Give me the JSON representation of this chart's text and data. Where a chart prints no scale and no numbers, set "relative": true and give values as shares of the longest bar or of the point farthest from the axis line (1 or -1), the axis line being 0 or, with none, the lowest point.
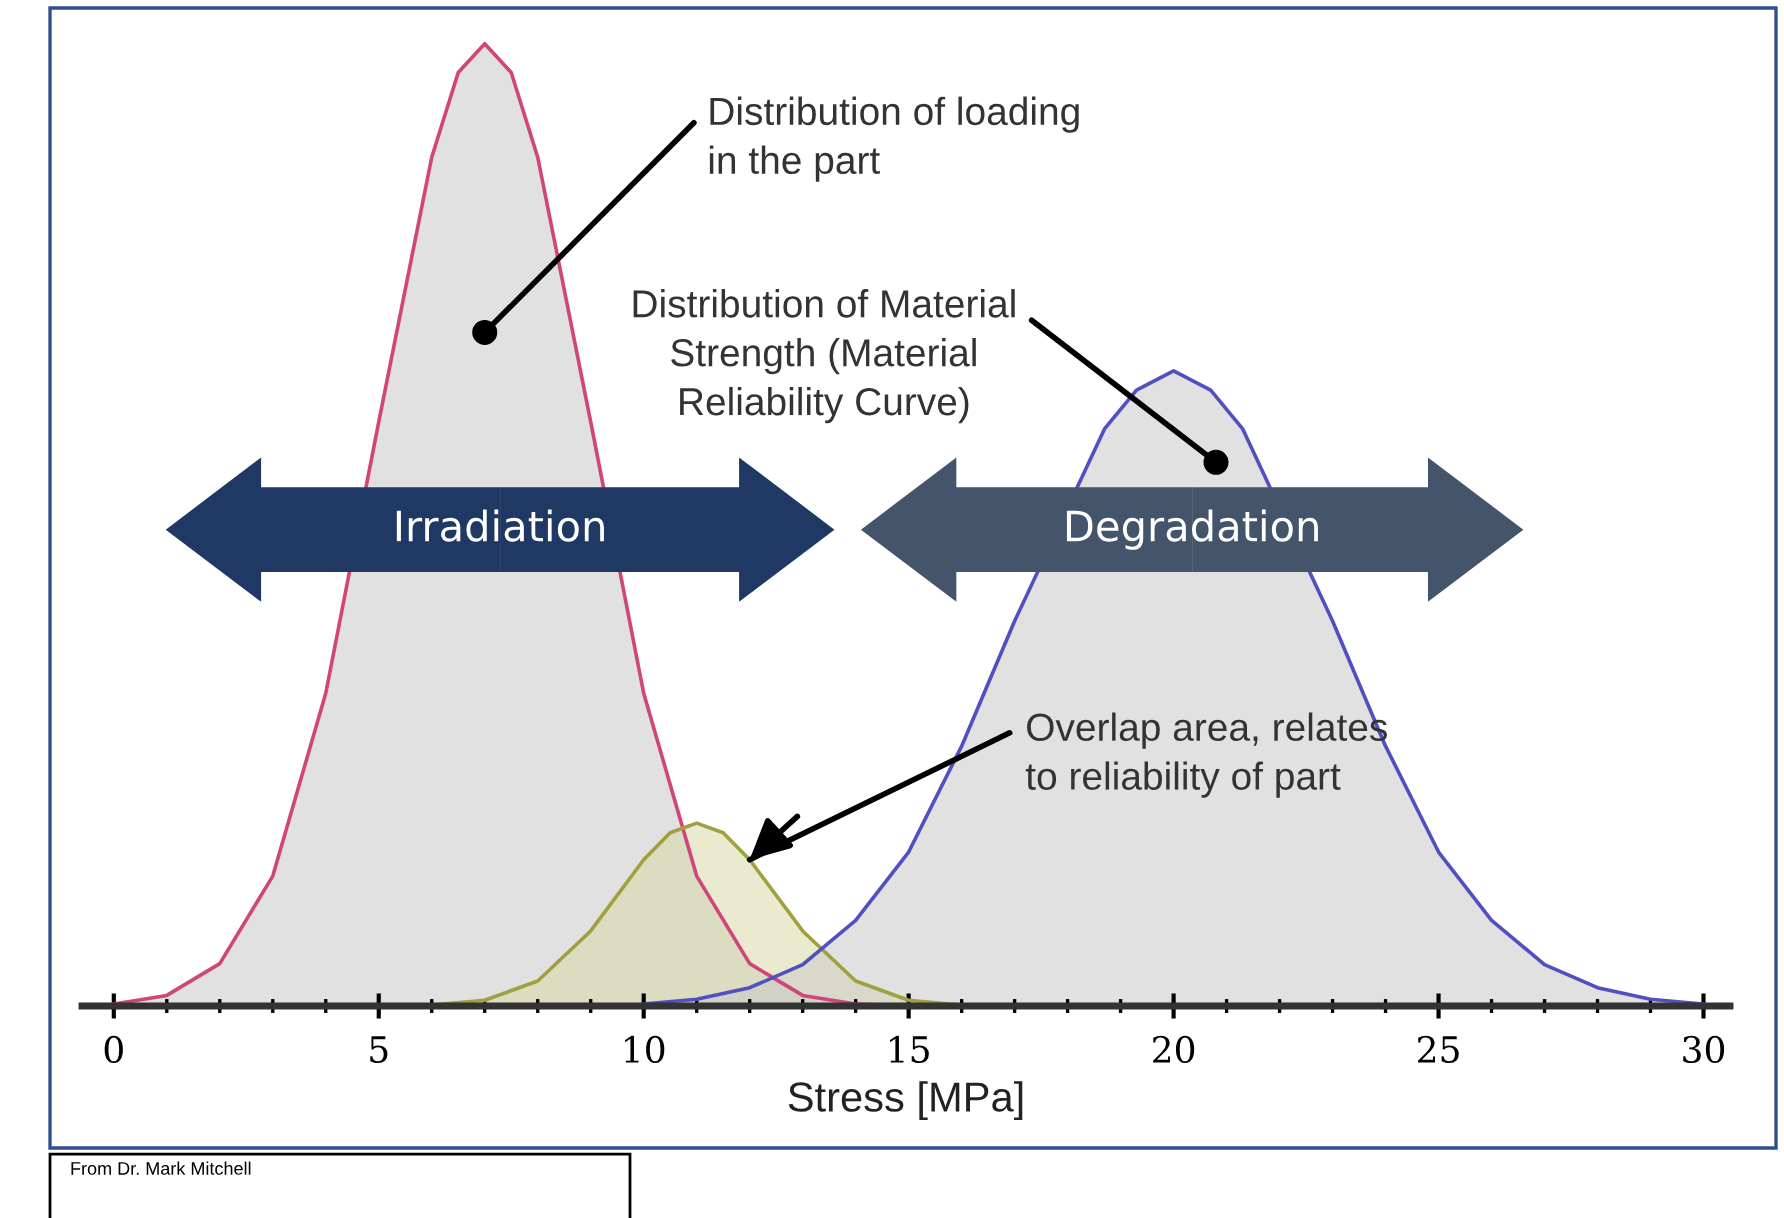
{
  "chart_data": {
    "type": "area",
    "relative": true,
    "xlabel": "Stress [MPa]",
    "xlim": [
      -0.6,
      30.5
    ],
    "xticks": [
      0,
      {
        "value": 1,
        "label": null
      },
      {
        "value": 2,
        "label": null
      },
      {
        "value": 3,
        "label": null
      },
      {
        "value": 4,
        "label": null
      },
      5,
      {
        "value": 6,
        "label": null
      },
      {
        "value": 7,
        "label": null
      },
      {
        "value": 8,
        "label": null
      },
      {
        "value": 9,
        "label": null
      },
      10,
      {
        "value": 11,
        "label": null
      },
      {
        "value": 12,
        "label": null
      },
      {
        "value": 13,
        "label": null
      },
      {
        "value": 14,
        "label": null
      },
      15,
      {
        "value": 16,
        "label": null
      },
      {
        "value": 17,
        "label": null
      },
      {
        "value": 18,
        "label": null
      },
      {
        "value": 19,
        "label": null
      },
      20,
      {
        "value": 21,
        "label": null
      },
      {
        "value": 22,
        "label": null
      },
      {
        "value": 23,
        "label": null
      },
      {
        "value": 24,
        "label": null
      },
      25,
      {
        "value": 26,
        "label": null
      },
      {
        "value": 27,
        "label": null
      },
      {
        "value": 28,
        "label": null
      },
      {
        "value": 29,
        "label": null
      },
      30
    ],
    "series": [
      {
        "color": "#d0457a",
        "x": [
          0,
          1,
          2,
          3,
          4,
          5,
          6,
          6.5,
          7,
          7.5,
          8,
          9,
          10,
          11,
          12,
          13,
          14,
          15
        ],
        "values": [
          0.002,
          0.011,
          0.044,
          0.135,
          0.325,
          0.607,
          0.882,
          0.97,
          1,
          0.97,
          0.882,
          0.607,
          0.325,
          0.135,
          0.044,
          0.011,
          0.002,
          0
        ]
      },
      {
        "color": "#a0a040",
        "x": [
          6,
          7,
          8,
          9,
          10,
          10.5,
          11,
          11.5,
          12,
          13,
          14,
          15,
          16
        ],
        "values": [
          0.001,
          0.006,
          0.026,
          0.078,
          0.152,
          0.18,
          0.19,
          0.18,
          0.152,
          0.078,
          0.026,
          0.006,
          0.001
        ]
      },
      {
        "color": "#5050c0",
        "x": [
          10,
          11,
          12,
          13,
          14,
          15,
          16,
          17,
          18.7,
          19.3,
          20,
          20.7,
          21.3,
          23,
          24,
          25,
          26,
          27,
          28,
          29,
          30
        ],
        "values": [
          0.002,
          0.007,
          0.019,
          0.043,
          0.089,
          0.16,
          0.27,
          0.4,
          0.6,
          0.64,
          0.66,
          0.64,
          0.6,
          0.4,
          0.27,
          0.16,
          0.089,
          0.043,
          0.019,
          0.007,
          0.002
        ]
      }
    ],
    "annotations": [
      {
        "text": "Distribution of loading\nin the part",
        "x": 7,
        "y": 0.7
      },
      {
        "text": "Distribution of Material\nStrength (Material\nReliability Curve)",
        "x": 20.8,
        "y": 0.565
      },
      {
        "text": "Overlap area, relates\nto reliability of part",
        "x": 12,
        "y": 0.152
      },
      "Irradiation",
      "Degradation",
      "From Dr. Mark Mitchell"
    ]
  }
}
